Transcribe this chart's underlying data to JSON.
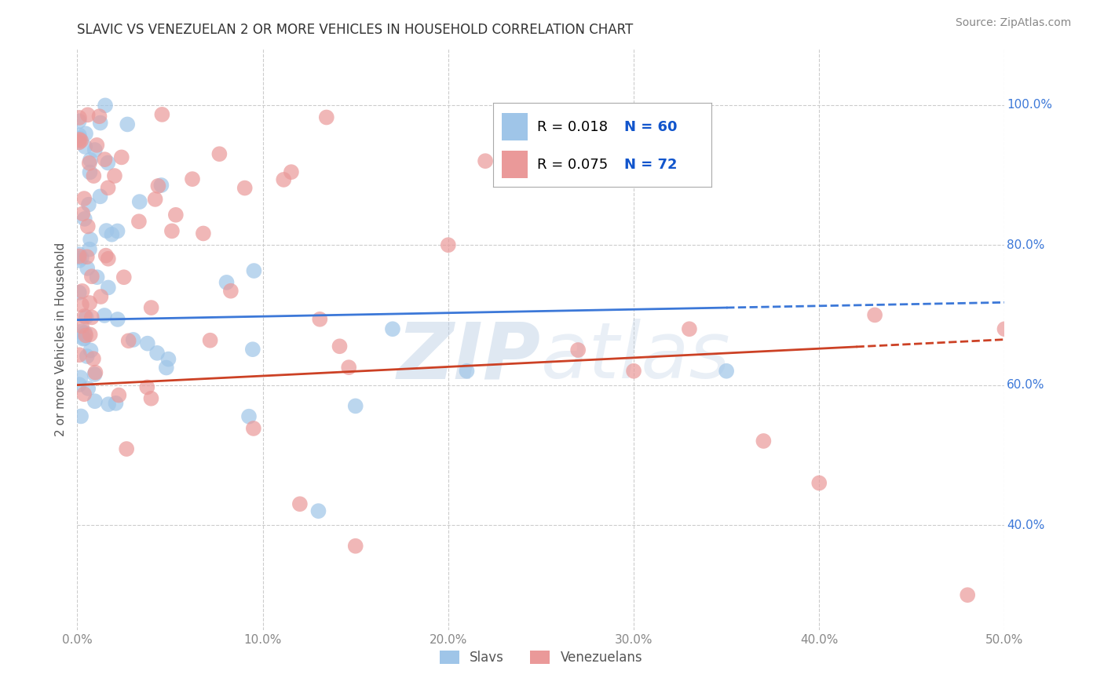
{
  "title": "SLAVIC VS VENEZUELAN 2 OR MORE VEHICLES IN HOUSEHOLD CORRELATION CHART",
  "source": "Source: ZipAtlas.com",
  "ylabel": "2 or more Vehicles in Household",
  "xlim": [
    0.0,
    0.5
  ],
  "ylim": [
    0.25,
    1.08
  ],
  "xticks": [
    0.0,
    0.1,
    0.2,
    0.3,
    0.4,
    0.5
  ],
  "xticklabels": [
    "0.0%",
    "",
    "",
    "",
    "",
    "50.0%"
  ],
  "yticks": [
    0.4,
    0.6,
    0.8,
    1.0
  ],
  "yticklabels": [
    "40.0%",
    "60.0%",
    "80.0%",
    "100.0%"
  ],
  "slavic_color": "#9fc5e8",
  "venezuelan_color": "#ea9999",
  "slavic_line_color": "#3c78d8",
  "venezuelan_line_color": "#cc4125",
  "grid_color": "#cccccc",
  "background_color": "#ffffff",
  "watermark": "ZIPatlas",
  "legend_r1": "R = 0.018",
  "legend_n1": "N = 60",
  "legend_r2": "R = 0.075",
  "legend_n2": "N = 72",
  "slavic_line_y0": 0.693,
  "slavic_line_y1": 0.718,
  "slavic_line_solid_end": 0.35,
  "venezuelan_line_y0": 0.6,
  "venezuelan_line_y1": 0.665,
  "venezuelan_line_solid_end": 0.42,
  "slavic_seed": 77,
  "venezuelan_seed": 33
}
